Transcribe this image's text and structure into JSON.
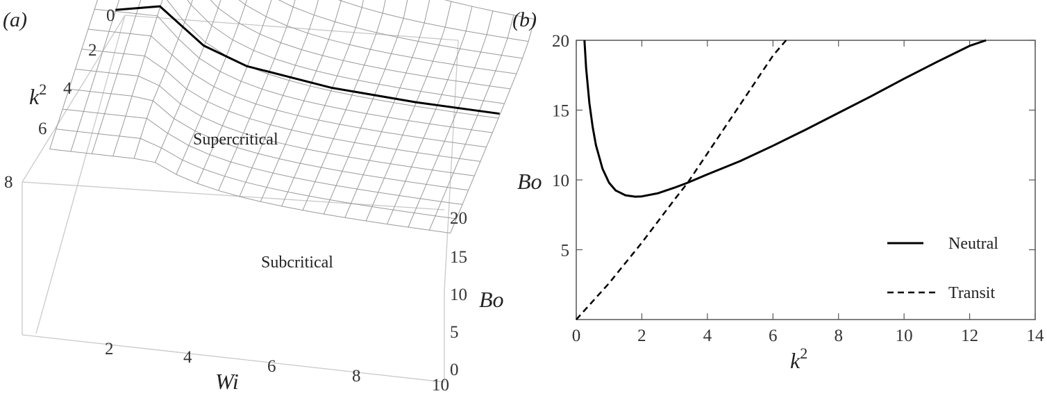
{
  "panel_a": {
    "letter": "(a)",
    "chart_data": {
      "type": "surface3d",
      "x": {
        "label": "Wi",
        "ticks": [
          "2",
          "4",
          "6",
          "8",
          "10"
        ],
        "range": [
          0,
          10
        ]
      },
      "y": {
        "label": "k",
        "label_sup": "2",
        "ticks": [
          "0",
          "2",
          "4",
          "6",
          "8"
        ],
        "range": [
          0,
          8
        ]
      },
      "z": {
        "label": "Bo",
        "ticks": [
          "0",
          "5",
          "10",
          "15",
          "20"
        ],
        "range": [
          0,
          20
        ]
      },
      "regions": {
        "upper": "Supercritical",
        "lower": "Subcritical"
      },
      "surface": "Bo(Wi, k^2) neutral-stability surface",
      "transit_curve": [
        [
          1.0,
          4.0
        ],
        [
          2.0,
          3.8
        ],
        [
          3.0,
          3.65
        ],
        [
          4.0,
          3.55
        ],
        [
          6.0,
          3.45
        ],
        [
          8.0,
          3.42
        ],
        [
          10.0,
          3.4
        ]
      ]
    }
  },
  "panel_b": {
    "letter": "(b)",
    "chart_data": {
      "type": "line",
      "xlabel": "k",
      "xlabel_sup": "2",
      "ylabel": "Bo",
      "xlim": [
        0,
        14
      ],
      "ylim": [
        0,
        20
      ],
      "x_ticks": [
        "0",
        "2",
        "4",
        "6",
        "8",
        "10",
        "12",
        "14"
      ],
      "y_ticks": [
        "5",
        "10",
        "15",
        "20"
      ],
      "legend_position": "bottom-right",
      "series": [
        {
          "name": "Neutral",
          "style": "solid",
          "x": [
            0.25,
            0.3,
            0.4,
            0.5,
            0.6,
            0.8,
            1.0,
            1.2,
            1.5,
            1.8,
            2.0,
            2.5,
            3.0,
            3.4,
            4.0,
            5.0,
            6.0,
            7.0,
            8.0,
            9.0,
            10.0,
            11.0,
            12.0,
            12.5
          ],
          "y": [
            20.0,
            18.0,
            15.5,
            13.8,
            12.5,
            10.8,
            9.8,
            9.25,
            8.9,
            8.8,
            8.82,
            9.05,
            9.45,
            9.8,
            10.4,
            11.35,
            12.45,
            13.6,
            14.8,
            16.0,
            17.25,
            18.45,
            19.6,
            20.0
          ]
        },
        {
          "name": "Transit",
          "style": "dashed",
          "x": [
            0.0,
            1.0,
            2.0,
            3.0,
            3.4,
            4.0,
            5.0,
            6.0,
            6.4
          ],
          "y": [
            0.0,
            2.6,
            5.5,
            8.6,
            9.8,
            11.9,
            15.4,
            18.9,
            20.0
          ]
        }
      ]
    }
  }
}
